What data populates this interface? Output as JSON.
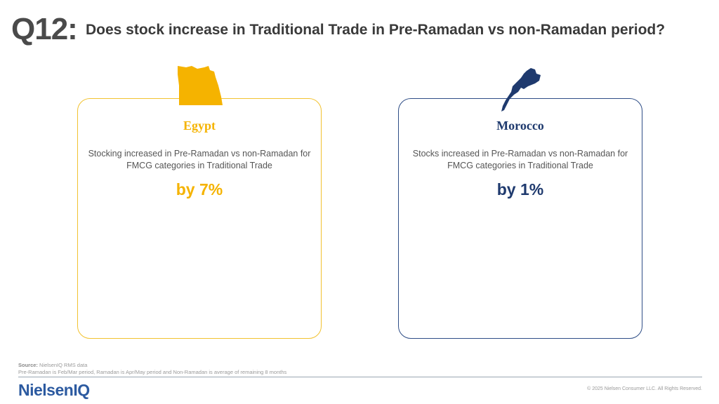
{
  "question": {
    "number": "Q12:",
    "title": "Does stock increase in Traditional Trade in Pre-Ramadan vs non-Ramadan period?"
  },
  "cards": [
    {
      "country": "Egypt",
      "description": "Stocking increased in Pre-Ramadan vs non-Ramadan for FMCG categories in Traditional Trade",
      "value": "by 7%",
      "color": "#F5B300",
      "icon": "egypt-map-icon"
    },
    {
      "country": "Morocco",
      "description": "Stocks increased in Pre-Ramadan vs non-Ramadan for FMCG categories in Traditional Trade",
      "value": "by 1%",
      "color": "#1F3A6E",
      "icon": "morocco-map-icon"
    }
  ],
  "source": {
    "label": "Source:",
    "text": " NielsenIQ RMS data",
    "note": "Pre-Ramadan  is Feb/Mar period, Ramadan is Apr/May period and Non-Ramadan  is average of remaining  8 months"
  },
  "footer": {
    "logo": "NielsenIQ",
    "copyright": "© 2025 Nielsen Consumer LLC. All Rights Reserved."
  }
}
